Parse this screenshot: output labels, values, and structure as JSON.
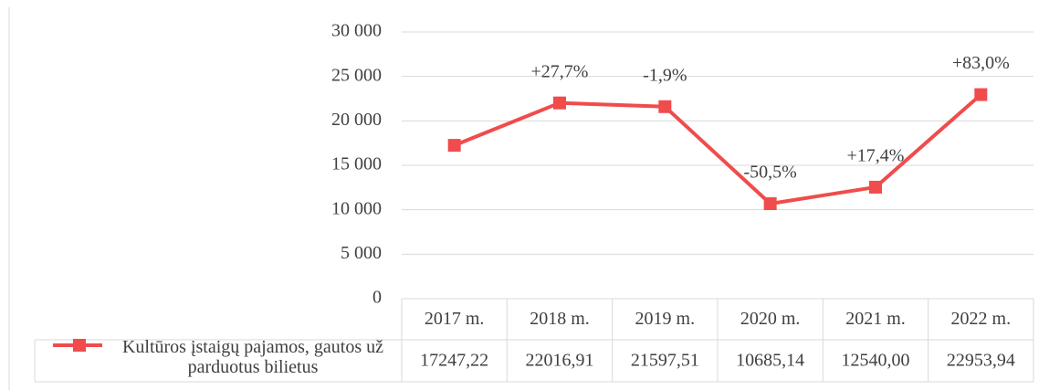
{
  "chart_data": {
    "type": "line",
    "categories": [
      "2017 m.",
      "2018 m.",
      "2019 m.",
      "2020 m.",
      "2021 m.",
      "2022 m."
    ],
    "series": [
      {
        "name": "Kultūros įstaigų pajamos, gautos už parduotus bilietus",
        "color": "#f04c4c",
        "values": [
          17247.22,
          22016.91,
          21597.51,
          10685.14,
          12540.0,
          22953.94
        ],
        "value_labels": [
          "17247,22",
          "22016,91",
          "21597,51",
          "10685,14",
          "12540,00",
          "22953,94"
        ],
        "change_labels": [
          null,
          "+27,7%",
          "-1,9%",
          "-50,5%",
          "+17,4%",
          "+83,0%"
        ]
      }
    ],
    "ylim": [
      0,
      30000
    ],
    "yticks": [
      0,
      {
        "value": 5000,
        "label": "5 000"
      },
      {
        "value": 10000,
        "label": "10 000"
      },
      {
        "value": 15000,
        "label": "15 000"
      },
      {
        "value": 20000,
        "label": "20 000"
      },
      {
        "value": 25000,
        "label": "25 000"
      },
      {
        "value": 30000,
        "label": "30 000"
      }
    ],
    "grid": true
  }
}
